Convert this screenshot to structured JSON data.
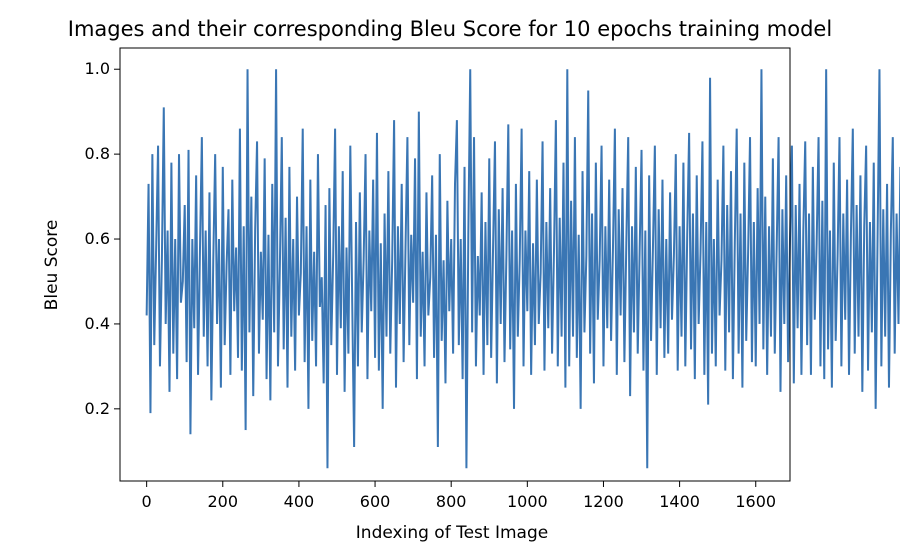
{
  "chart_data": {
    "type": "line",
    "title": "Images and their corresponding Bleu Score for 10 epochs training model",
    "xlabel": "Indexing of Test Image",
    "ylabel": "Bleu Score",
    "xlim": [
      -70,
      1690
    ],
    "ylim": [
      0.03,
      1.05
    ],
    "x_ticks": [
      0,
      200,
      400,
      600,
      800,
      1000,
      1200,
      1400,
      1600
    ],
    "y_ticks": [
      0.2,
      0.4,
      0.6,
      0.8,
      1.0
    ],
    "x_tick_labels": [
      "0",
      "200",
      "400",
      "600",
      "800",
      "1000",
      "1200",
      "1400",
      "1600"
    ],
    "y_tick_labels": [
      "0.2",
      "0.4",
      "0.6",
      "0.8",
      "1.0"
    ],
    "grid": false,
    "series": [
      {
        "color": "#3a76b4",
        "x_start": 0,
        "x_step": 5,
        "values": [
          0.42,
          0.73,
          0.19,
          0.8,
          0.35,
          0.58,
          0.82,
          0.3,
          0.55,
          0.91,
          0.4,
          0.62,
          0.24,
          0.78,
          0.33,
          0.6,
          0.27,
          0.8,
          0.45,
          0.5,
          0.68,
          0.31,
          0.81,
          0.14,
          0.6,
          0.39,
          0.75,
          0.28,
          0.57,
          0.84,
          0.37,
          0.62,
          0.3,
          0.71,
          0.22,
          0.55,
          0.8,
          0.4,
          0.6,
          0.25,
          0.77,
          0.35,
          0.54,
          0.67,
          0.28,
          0.74,
          0.43,
          0.58,
          0.32,
          0.86,
          0.29,
          0.63,
          0.15,
          1.0,
          0.38,
          0.7,
          0.23,
          0.62,
          0.83,
          0.33,
          0.57,
          0.41,
          0.79,
          0.27,
          0.61,
          0.22,
          0.73,
          0.38,
          1.0,
          0.3,
          0.54,
          0.84,
          0.34,
          0.65,
          0.25,
          0.77,
          0.37,
          0.6,
          0.29,
          0.7,
          0.42,
          0.52,
          0.86,
          0.31,
          0.63,
          0.2,
          0.74,
          0.36,
          0.57,
          0.3,
          0.8,
          0.44,
          0.51,
          0.26,
          0.68,
          0.06,
          0.72,
          0.35,
          0.56,
          0.86,
          0.28,
          0.63,
          0.39,
          0.76,
          0.24,
          0.58,
          0.33,
          0.82,
          0.45,
          0.11,
          0.64,
          0.3,
          0.71,
          0.38,
          0.55,
          0.8,
          0.27,
          0.62,
          0.43,
          0.74,
          0.32,
          0.85,
          0.29,
          0.59,
          0.2,
          0.66,
          0.37,
          0.76,
          0.33,
          0.55,
          0.88,
          0.25,
          0.63,
          0.4,
          0.73,
          0.31,
          0.58,
          0.84,
          0.35,
          0.61,
          0.45,
          0.79,
          0.27,
          0.9,
          0.37,
          0.57,
          0.3,
          0.71,
          0.42,
          0.51,
          0.75,
          0.32,
          0.61,
          0.11,
          0.8,
          0.36,
          0.55,
          0.26,
          0.69,
          0.43,
          0.6,
          0.33,
          0.73,
          0.88,
          0.35,
          0.6,
          0.27,
          0.77,
          0.06,
          0.61,
          1.0,
          0.38,
          0.84,
          0.3,
          0.56,
          0.42,
          0.71,
          0.28,
          0.64,
          0.35,
          0.79,
          0.32,
          0.58,
          0.83,
          0.26,
          0.67,
          0.4,
          0.72,
          0.31,
          0.56,
          0.87,
          0.34,
          0.62,
          0.2,
          0.73,
          0.37,
          0.55,
          0.86,
          0.3,
          0.62,
          0.43,
          0.76,
          0.28,
          0.59,
          0.35,
          0.74,
          0.4,
          0.52,
          0.83,
          0.29,
          0.64,
          0.39,
          0.72,
          0.33,
          0.57,
          0.88,
          0.3,
          0.65,
          0.37,
          0.78,
          0.25,
          1.0,
          0.3,
          0.69,
          0.37,
          0.84,
          0.32,
          0.61,
          0.2,
          0.76,
          0.38,
          0.56,
          0.95,
          0.33,
          0.66,
          0.26,
          0.78,
          0.41,
          0.55,
          0.82,
          0.3,
          0.63,
          0.39,
          0.74,
          0.36,
          0.58,
          0.86,
          0.28,
          0.67,
          0.42,
          0.72,
          0.31,
          0.59,
          0.84,
          0.23,
          0.63,
          0.38,
          0.77,
          0.33,
          0.57,
          0.81,
          0.29,
          0.62,
          0.06,
          0.75,
          0.36,
          0.58,
          0.82,
          0.28,
          0.67,
          0.39,
          0.74,
          0.32,
          0.6,
          0.33,
          0.71,
          0.41,
          0.56,
          0.8,
          0.29,
          0.63,
          0.37,
          0.78,
          0.3,
          0.61,
          0.85,
          0.34,
          0.66,
          0.27,
          0.75,
          0.4,
          0.57,
          0.83,
          0.28,
          0.64,
          0.21,
          0.98,
          0.33,
          0.6,
          0.3,
          0.74,
          0.42,
          0.55,
          0.82,
          0.29,
          0.68,
          0.38,
          0.76,
          0.27,
          0.59,
          0.86,
          0.33,
          0.66,
          0.25,
          0.78,
          0.36,
          0.57,
          0.84,
          0.31,
          0.64,
          0.3,
          0.72,
          0.4,
          1.0,
          0.34,
          0.7,
          0.28,
          0.63,
          0.37,
          0.79,
          0.33,
          0.58,
          0.84,
          0.24,
          0.67,
          0.4,
          0.75,
          0.31,
          0.6,
          0.82,
          0.26,
          0.68,
          0.39,
          0.73,
          0.28,
          0.62,
          0.83,
          0.35,
          0.66,
          0.28,
          0.77,
          0.41,
          0.59,
          0.84,
          0.3,
          0.69,
          0.27,
          1.0,
          0.34,
          0.62,
          0.25,
          0.78,
          0.36,
          0.56,
          0.84,
          0.3,
          0.66,
          0.41,
          0.74,
          0.28,
          0.61,
          0.86,
          0.33,
          0.68,
          0.37,
          0.75,
          0.24,
          0.63,
          0.82,
          0.29,
          0.64,
          0.38,
          0.78,
          0.2,
          0.6,
          1.0,
          0.3,
          0.67,
          0.37,
          0.73,
          0.25,
          0.62,
          0.84,
          0.33,
          0.66,
          0.4,
          0.77,
          0.29,
          0.64,
          0.34,
          0.82,
          0.28,
          0.61,
          0.18,
          0.79,
          0.3,
          0.82,
          0.45
        ]
      }
    ]
  }
}
